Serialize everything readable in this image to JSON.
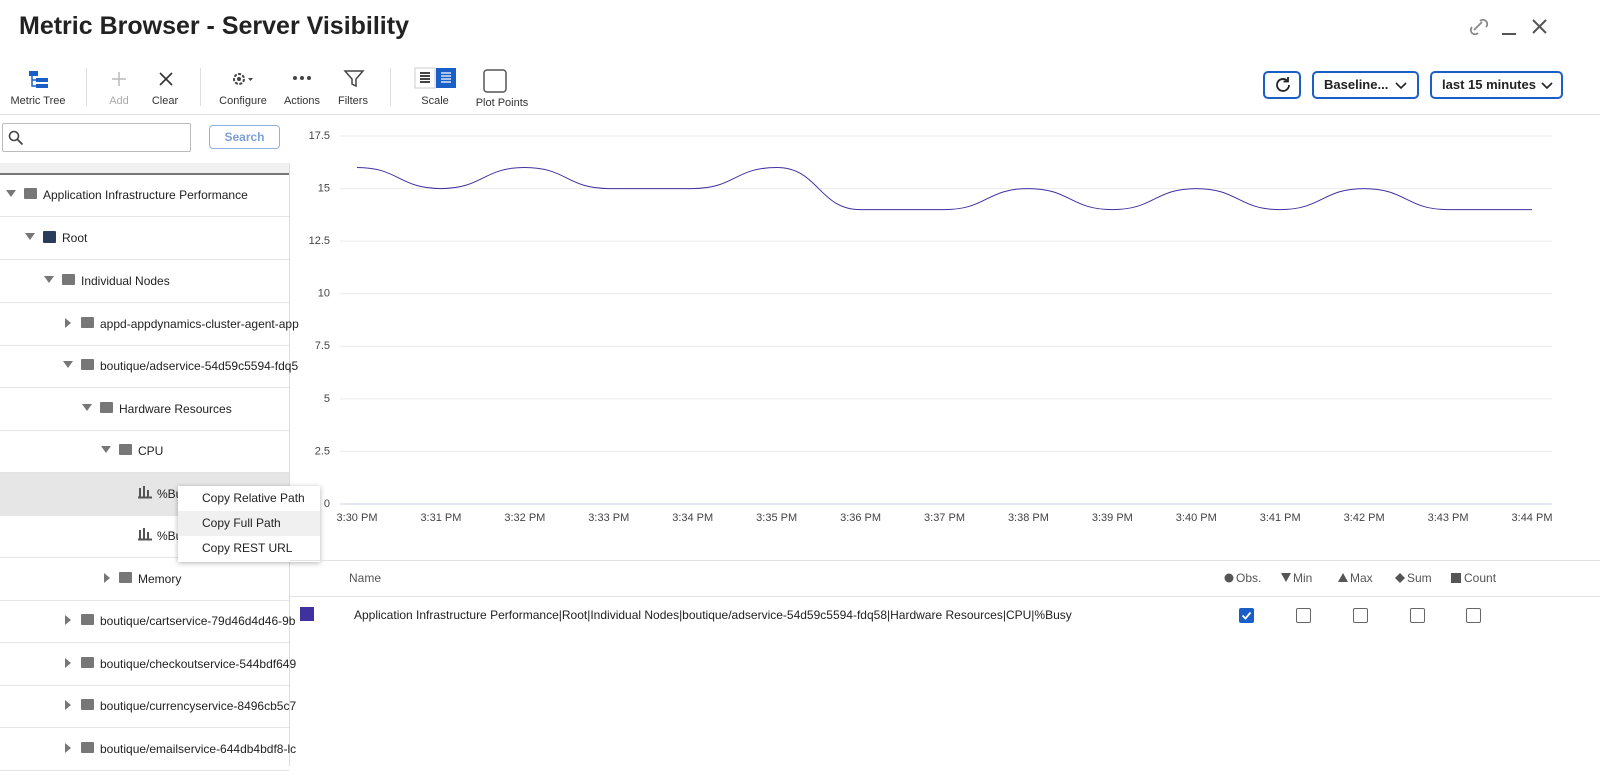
{
  "header": {
    "title": "Metric Browser - Server Visibility"
  },
  "toolbar": {
    "metric_tree": "Metric Tree",
    "add": "Add",
    "clear": "Clear",
    "configure": "Configure",
    "actions": "Actions",
    "filters": "Filters",
    "scale": "Scale",
    "plot_points": "Plot Points",
    "baseline": "Baseline...",
    "time_range": "last 15 minutes"
  },
  "search": {
    "button": "Search"
  },
  "tree": [
    "Application Infrastructure Performance",
    "Root",
    "Individual Nodes",
    "appd-appdynamics-cluster-agent-app",
    "boutique/adservice-54d59c5594-fdq5",
    "Hardware Resources",
    "CPU",
    "%Bu",
    "%Bu",
    "Memory",
    "boutique/cartservice-79d46d4d46-9b",
    "boutique/checkoutservice-544bdf649",
    "boutique/currencyservice-8496cb5c7",
    "boutique/emailservice-644db4bdf8-lc"
  ],
  "context_menu": [
    "Copy Relative Path",
    "Copy Full Path",
    "Copy REST URL"
  ],
  "chart_data": {
    "type": "line",
    "categories": [
      "3:30 PM",
      "3:31 PM",
      "3:32 PM",
      "3:33 PM",
      "3:34 PM",
      "3:35 PM",
      "3:36 PM",
      "3:37 PM",
      "3:38 PM",
      "3:39 PM",
      "3:40 PM",
      "3:41 PM",
      "3:42 PM",
      "3:43 PM",
      "3:44 PM"
    ],
    "series": [
      {
        "name": "Application Infrastructure Performance|Root|Individual Nodes|boutique/adservice-54d59c5594-fdq58|Hardware Resources|CPU|%Busy",
        "color": "#3f31a0",
        "values": [
          16,
          15,
          16,
          15,
          15,
          16,
          14,
          14,
          15,
          14,
          15,
          14,
          15,
          14,
          14
        ]
      }
    ],
    "ylim": [
      0,
      17.5
    ],
    "yticks": [
      0,
      2.5,
      5,
      7.5,
      10,
      12.5,
      15,
      17.5
    ],
    "grid": true
  },
  "table": {
    "headers": [
      "Name",
      "Obs.",
      "Min",
      "Max",
      "Sum",
      "Count"
    ]
  }
}
